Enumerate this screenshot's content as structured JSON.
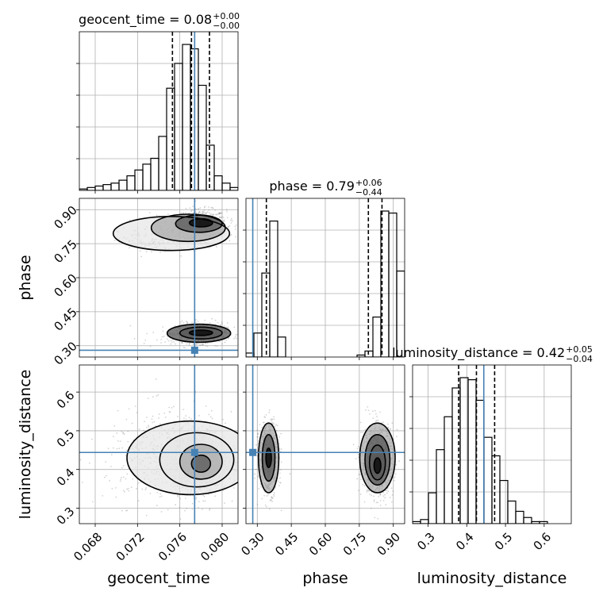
{
  "colors": {
    "truth": "#4682b4",
    "hist": "#000000",
    "grid": "#b0b0b0",
    "scatter": "#808080"
  },
  "chart_data": {
    "type": "corner",
    "parameters": [
      "geocent_time",
      "phase",
      "luminosity_distance"
    ],
    "axis_labels": {
      "x": [
        "geocent_time",
        "phase",
        "luminosity_distance"
      ],
      "y": [
        "",
        "phase",
        "luminosity_distance"
      ]
    },
    "ranges": [
      [
        0.0665,
        0.0815
      ],
      [
        0.25,
        0.95
      ],
      [
        0.26,
        0.67
      ]
    ],
    "ticks": [
      {
        "values": [
          0.068,
          0.072,
          0.076,
          0.08
        ],
        "labels": [
          "0.068",
          "0.072",
          "0.076",
          "0.080"
        ]
      },
      {
        "values": [
          0.3,
          0.45,
          0.6,
          0.75,
          0.9
        ],
        "labels": [
          "0.30",
          "0.45",
          "0.60",
          "0.75",
          "0.90"
        ]
      },
      {
        "values": [
          0.3,
          0.4,
          0.5,
          0.6
        ],
        "labels": [
          "0.3",
          "0.4",
          "0.5",
          "0.6"
        ]
      }
    ],
    "ytick_labels": {
      "phase": [
        "0.30",
        "0.45",
        "0.60",
        "0.75",
        "0.90"
      ],
      "luminosity_distance": [
        "0.3",
        "0.4",
        "0.5",
        "0.6"
      ]
    },
    "truths": [
      0.0774,
      0.28,
      0.444
    ],
    "titles": [
      {
        "name": "geocent_time",
        "prefix": "geocent_time = ",
        "value": "0.08",
        "plus": "+0.00",
        "minus": "−0.00"
      },
      {
        "name": "phase",
        "prefix": "phase = ",
        "value": "0.79",
        "plus": "+0.06",
        "minus": "−0.44"
      },
      {
        "name": "luminosity_distance",
        "prefix": "luminosity_distance = ",
        "value": "0.42",
        "plus": "+0.05",
        "minus": "−0.04"
      }
    ],
    "quantiles": [
      [
        0.0753,
        0.0771,
        0.0788
      ],
      [
        0.34,
        0.79,
        0.85
      ],
      [
        0.379,
        0.425,
        0.472
      ]
    ],
    "histograms": [
      {
        "bin_start": 0.0665,
        "bin_width": 0.00075,
        "counts": [
          1,
          2,
          3,
          4,
          5,
          7,
          10,
          14,
          18,
          22,
          37,
          70,
          87,
          100,
          97,
          72,
          31,
          10,
          5,
          2
        ]
      },
      {
        "bin_start": 0.25,
        "bin_width": 0.035,
        "counts": [
          2,
          12,
          42,
          68,
          10,
          0,
          0,
          0,
          0,
          0,
          0,
          0,
          0,
          0,
          1,
          3,
          20,
          73,
          72,
          43
        ]
      },
      {
        "bin_start": 0.26,
        "bin_width": 0.0205,
        "counts": [
          1,
          2,
          15,
          36,
          52,
          66,
          71,
          70,
          60,
          42,
          33,
          21,
          11,
          6,
          3,
          1,
          1,
          0,
          0,
          0
        ]
      }
    ],
    "samples_2d": [
      {
        "x": "geocent_time",
        "y": "phase",
        "clusters": [
          {
            "mx": 0.078,
            "my": 0.84,
            "sx": 0.0012,
            "sy": 0.03,
            "w": 0.4
          },
          {
            "mx": 0.0765,
            "my": 0.81,
            "sx": 0.002,
            "sy": 0.04,
            "w": 0.1
          },
          {
            "mx": 0.073,
            "my": 0.76,
            "sx": 0.0014,
            "sy": 0.03,
            "w": 0.06
          },
          {
            "mx": 0.078,
            "my": 0.355,
            "sx": 0.0012,
            "sy": 0.022,
            "w": 0.4
          },
          {
            "mx": 0.0765,
            "my": 0.34,
            "sx": 0.002,
            "sy": 0.03,
            "w": 0.04
          }
        ],
        "contours": [
          {
            "cx": 0.078,
            "cy": 0.842,
            "rx": 0.0011,
            "ry": 0.018,
            "rot": 0
          },
          {
            "cx": 0.0778,
            "cy": 0.838,
            "rx": 0.0022,
            "ry": 0.038,
            "rot": 0
          },
          {
            "cx": 0.0768,
            "cy": 0.82,
            "rx": 0.0035,
            "ry": 0.06,
            "rot": 0
          },
          {
            "cx": 0.0752,
            "cy": 0.795,
            "rx": 0.0055,
            "ry": 0.075,
            "rot": 0
          },
          {
            "cx": 0.078,
            "cy": 0.357,
            "rx": 0.0011,
            "ry": 0.012,
            "rot": 0
          },
          {
            "cx": 0.078,
            "cy": 0.356,
            "rx": 0.002,
            "ry": 0.026,
            "rot": 0
          },
          {
            "cx": 0.0778,
            "cy": 0.355,
            "rx": 0.003,
            "ry": 0.04,
            "rot": 0
          }
        ]
      },
      {
        "x": "geocent_time",
        "y": "luminosity_distance",
        "clusters": [
          {
            "mx": 0.078,
            "my": 0.42,
            "sx": 0.0013,
            "sy": 0.04,
            "w": 0.7
          },
          {
            "mx": 0.075,
            "my": 0.435,
            "sx": 0.003,
            "sy": 0.06,
            "w": 0.3
          }
        ],
        "contours": [
          {
            "cx": 0.078,
            "cy": 0.415,
            "rx": 0.0009,
            "ry": 0.022,
            "rot": 0
          },
          {
            "cx": 0.078,
            "cy": 0.42,
            "rx": 0.002,
            "ry": 0.045,
            "rot": 0
          },
          {
            "cx": 0.0776,
            "cy": 0.425,
            "rx": 0.0035,
            "ry": 0.07,
            "rot": 0
          },
          {
            "cx": 0.077,
            "cy": 0.43,
            "rx": 0.006,
            "ry": 0.095,
            "rot": 0
          }
        ]
      },
      {
        "x": "phase",
        "y": "luminosity_distance",
        "clusters": [
          {
            "mx": 0.35,
            "my": 0.43,
            "sx": 0.022,
            "sy": 0.045,
            "w": 0.45
          },
          {
            "mx": 0.83,
            "my": 0.425,
            "sx": 0.035,
            "sy": 0.045,
            "w": 0.55
          }
        ],
        "contours": [
          {
            "cx": 0.35,
            "cy": 0.43,
            "rx": 0.012,
            "ry": 0.025,
            "rot": 0
          },
          {
            "cx": 0.35,
            "cy": 0.43,
            "rx": 0.028,
            "ry": 0.06,
            "rot": 0
          },
          {
            "cx": 0.35,
            "cy": 0.43,
            "rx": 0.045,
            "ry": 0.09,
            "rot": 0
          },
          {
            "cx": 0.83,
            "cy": 0.41,
            "rx": 0.015,
            "ry": 0.02,
            "rot": 0
          },
          {
            "cx": 0.83,
            "cy": 0.418,
            "rx": 0.035,
            "ry": 0.045,
            "rot": 0
          },
          {
            "cx": 0.83,
            "cy": 0.425,
            "rx": 0.055,
            "ry": 0.065,
            "rot": 0
          },
          {
            "cx": 0.83,
            "cy": 0.43,
            "rx": 0.078,
            "ry": 0.09,
            "rot": 0
          }
        ]
      }
    ]
  }
}
